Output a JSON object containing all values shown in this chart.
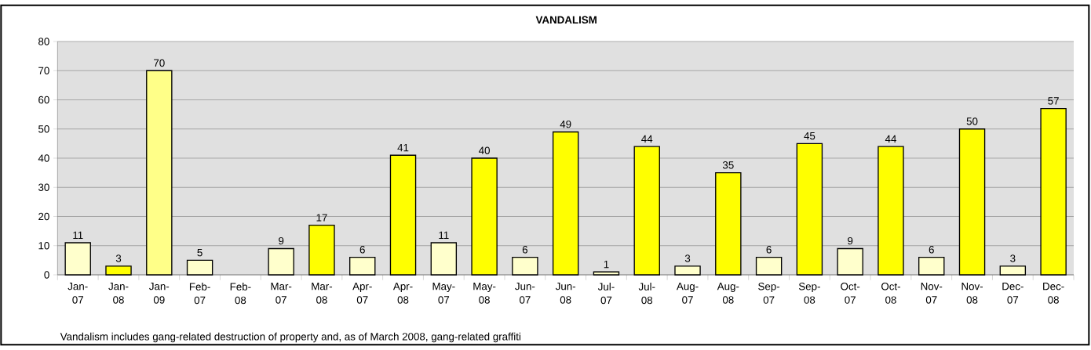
{
  "chart_data": {
    "type": "bar",
    "title": "VANDALISM",
    "categories": [
      "Jan- 07",
      "Jan- 08",
      "Jan- 09",
      "Feb- 07",
      "Feb- 08",
      "Mar- 07",
      "Mar- 08",
      "Apr- 07",
      "Apr- 08",
      "May- 07",
      "May- 08",
      "Jun- 07",
      "Jun- 08",
      "Jul- 07",
      "Jul- 08",
      "Aug- 07",
      "Aug- 08",
      "Sep- 07",
      "Sep- 08",
      "Oct- 07",
      "Oct- 08",
      "Nov- 07",
      "Nov- 08",
      "Dec- 07",
      "Dec- 08"
    ],
    "values": [
      11,
      3,
      70,
      5,
      null,
      9,
      17,
      6,
      41,
      11,
      40,
      6,
      49,
      1,
      44,
      3,
      35,
      6,
      45,
      9,
      44,
      6,
      50,
      3,
      57
    ],
    "colors": [
      "#ffffcc",
      "#ffff00",
      "#ffff88",
      "#ffffcc",
      "#ffff00",
      "#ffffcc",
      "#ffff00",
      "#ffffcc",
      "#ffff00",
      "#ffffcc",
      "#ffff00",
      "#ffffcc",
      "#ffff00",
      "#ffffcc",
      "#ffff00",
      "#ffffcc",
      "#ffff00",
      "#ffffcc",
      "#ffff00",
      "#ffffcc",
      "#ffff00",
      "#ffffcc",
      "#ffff00",
      "#ffffcc",
      "#ffff00"
    ],
    "ylim": [
      0,
      80
    ],
    "yticks": [
      0,
      10,
      20,
      30,
      40,
      50,
      60,
      70,
      80
    ],
    "grid": "y",
    "data_labels": true,
    "annotations": [
      "Vandalism includes gang-related destruction of property and, as of March 2008, gang-related graffiti"
    ]
  }
}
